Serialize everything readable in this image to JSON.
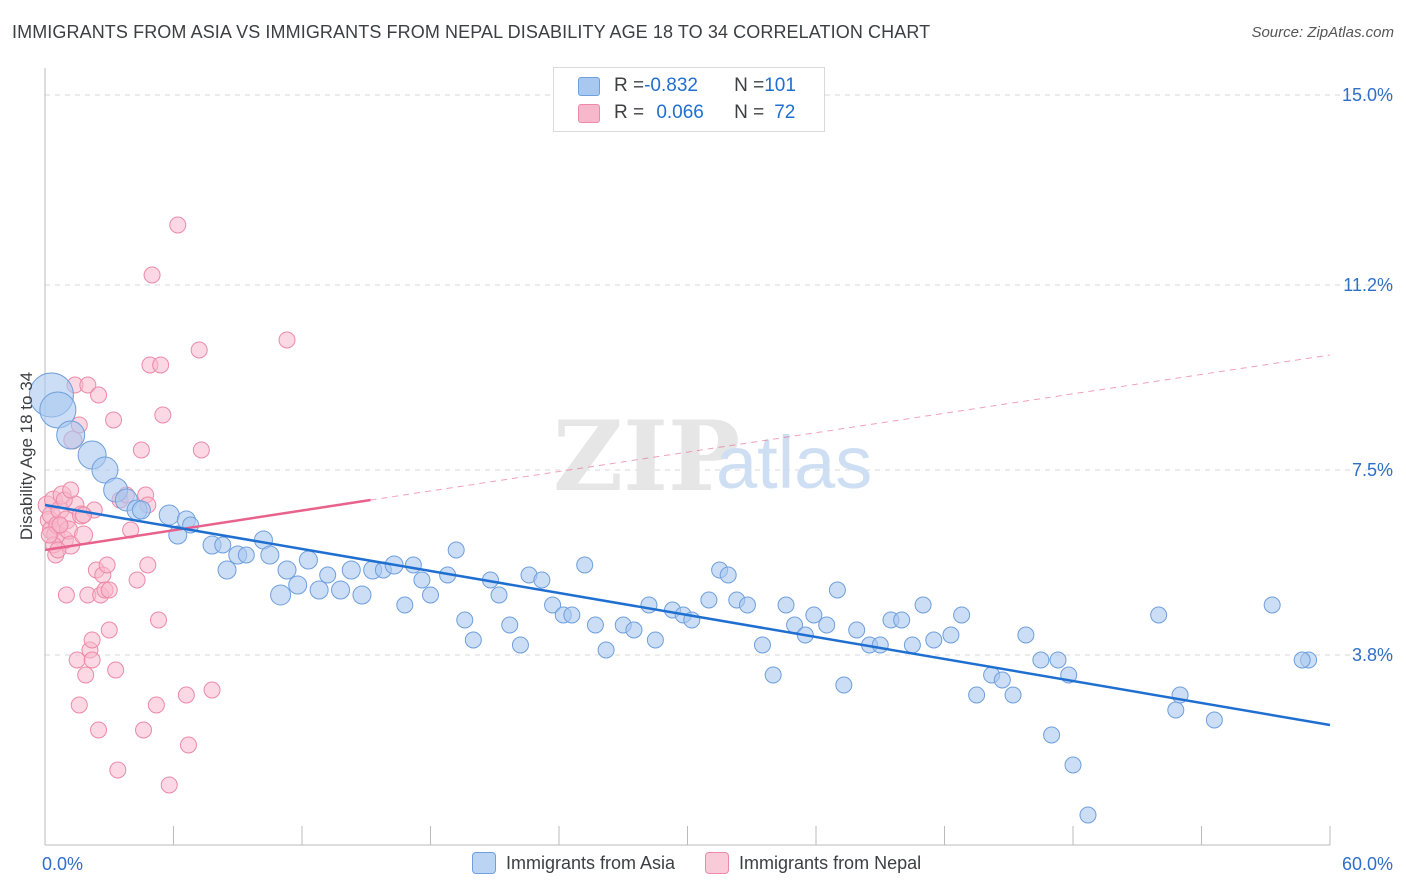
{
  "header": {
    "title": "IMMIGRANTS FROM ASIA VS IMMIGRANTS FROM NEPAL DISABILITY AGE 18 TO 34 CORRELATION CHART",
    "source": "Source: ZipAtlas.com"
  },
  "legend": {
    "rows": [
      {
        "r_label": "R = ",
        "r_value": "-0.832",
        "n_label": "N = ",
        "n_value": "101"
      },
      {
        "r_label": "R = ",
        "r_value": "0.066",
        "n_label": "N = ",
        "n_value": "72"
      }
    ]
  },
  "watermark": {
    "zip": "ZIP",
    "atlas": "atlas"
  },
  "colors": {
    "asia_fill": "#a9c8f0",
    "asia_stroke": "#6f9fdc",
    "asia_line": "#1f6fd1",
    "nepal_fill": "#f7b8cc",
    "nepal_stroke": "#ec8aa8",
    "nepal_line": "#e8628c",
    "grid": "#d8d8d8",
    "tick_label": "#2f6fc8"
  },
  "chart_data": {
    "type": "scatter",
    "title": "IMMIGRANTS FROM ASIA VS IMMIGRANTS FROM NEPAL DISABILITY AGE 18 TO 34 CORRELATION CHART",
    "xlabel": "",
    "ylabel": "Disability Age 18 to 34",
    "xlim": [
      0,
      60
    ],
    "ylim": [
      0,
      15.5
    ],
    "x_tick_labels": [
      "0.0%",
      "60.0%"
    ],
    "y_ticks": [
      3.8,
      7.5,
      11.2,
      15.0
    ],
    "y_tick_labels": [
      "3.8%",
      "7.5%",
      "11.2%",
      "15.0%"
    ],
    "grid": "horizontal dashed",
    "legend_position": "top-center",
    "series": [
      {
        "name": "Immigrants from Asia",
        "r": -0.832,
        "n": 101,
        "trend": {
          "x": [
            0,
            60
          ],
          "y": [
            6.8,
            2.4
          ],
          "style": "solid"
        },
        "points": [
          [
            0.3,
            9.0,
            22
          ],
          [
            0.6,
            8.7,
            18
          ],
          [
            1.2,
            8.2,
            14
          ],
          [
            2.2,
            7.8,
            14
          ],
          [
            2.8,
            7.5,
            13
          ],
          [
            3.3,
            7.1,
            12
          ],
          [
            3.8,
            6.9,
            11
          ],
          [
            4.3,
            6.7,
            10
          ],
          [
            5.8,
            6.6,
            10
          ],
          [
            6.2,
            6.2,
            9
          ],
          [
            6.6,
            6.5,
            9
          ],
          [
            6.8,
            6.4,
            8
          ],
          [
            7.8,
            6.0,
            9
          ],
          [
            8.3,
            6.0,
            8
          ],
          [
            8.5,
            5.5,
            9
          ],
          [
            9.0,
            5.8,
            9
          ],
          [
            9.4,
            5.8,
            8
          ],
          [
            10.2,
            6.1,
            9
          ],
          [
            10.5,
            5.8,
            9
          ],
          [
            11.0,
            5.0,
            10
          ],
          [
            11.3,
            5.5,
            9
          ],
          [
            11.8,
            5.2,
            9
          ],
          [
            12.3,
            5.7,
            9
          ],
          [
            12.8,
            5.1,
            9
          ],
          [
            13.2,
            5.4,
            8
          ],
          [
            13.8,
            5.1,
            9
          ],
          [
            14.3,
            5.5,
            9
          ],
          [
            14.8,
            5.0,
            9
          ],
          [
            15.3,
            5.5,
            9
          ],
          [
            15.8,
            5.5,
            8
          ],
          [
            16.3,
            5.6,
            9
          ],
          [
            16.8,
            4.8,
            8
          ],
          [
            17.2,
            5.6,
            8
          ],
          [
            17.6,
            5.3,
            8
          ],
          [
            18.0,
            5.0,
            8
          ],
          [
            18.8,
            5.4,
            8
          ],
          [
            19.2,
            5.9,
            8
          ],
          [
            19.6,
            4.5,
            8
          ],
          [
            20.0,
            4.1,
            8
          ],
          [
            20.8,
            5.3,
            8
          ],
          [
            21.2,
            5.0,
            8
          ],
          [
            21.7,
            4.4,
            8
          ],
          [
            22.2,
            4.0,
            8
          ],
          [
            22.6,
            5.4,
            8
          ],
          [
            23.2,
            5.3,
            8
          ],
          [
            23.7,
            4.8,
            8
          ],
          [
            24.2,
            4.6,
            8
          ],
          [
            24.6,
            4.6,
            8
          ],
          [
            25.2,
            5.6,
            8
          ],
          [
            25.7,
            4.4,
            8
          ],
          [
            26.2,
            3.9,
            8
          ],
          [
            27.0,
            4.4,
            8
          ],
          [
            27.5,
            4.3,
            8
          ],
          [
            28.2,
            4.8,
            8
          ],
          [
            28.5,
            4.1,
            8
          ],
          [
            29.3,
            4.7,
            8
          ],
          [
            29.8,
            4.6,
            8
          ],
          [
            30.2,
            4.5,
            8
          ],
          [
            31.0,
            4.9,
            8
          ],
          [
            31.5,
            5.5,
            8
          ],
          [
            31.9,
            5.4,
            8
          ],
          [
            32.3,
            4.9,
            8
          ],
          [
            32.8,
            4.8,
            8
          ],
          [
            33.5,
            4.0,
            8
          ],
          [
            34.0,
            3.4,
            8
          ],
          [
            34.6,
            4.8,
            8
          ],
          [
            35.0,
            4.4,
            8
          ],
          [
            35.5,
            4.2,
            8
          ],
          [
            35.9,
            4.6,
            8
          ],
          [
            36.5,
            4.4,
            8
          ],
          [
            37.0,
            5.1,
            8
          ],
          [
            37.3,
            3.2,
            8
          ],
          [
            37.9,
            4.3,
            8
          ],
          [
            38.5,
            4.0,
            8
          ],
          [
            39.0,
            4.0,
            8
          ],
          [
            39.5,
            4.5,
            8
          ],
          [
            40.0,
            4.5,
            8
          ],
          [
            40.5,
            4.0,
            8
          ],
          [
            41.0,
            4.8,
            8
          ],
          [
            41.5,
            4.1,
            8
          ],
          [
            42.3,
            4.2,
            8
          ],
          [
            42.8,
            4.6,
            8
          ],
          [
            43.5,
            3.0,
            8
          ],
          [
            44.2,
            3.4,
            8
          ],
          [
            44.7,
            3.3,
            8
          ],
          [
            45.2,
            3.0,
            8
          ],
          [
            45.8,
            4.2,
            8
          ],
          [
            46.5,
            3.7,
            8
          ],
          [
            47.0,
            2.2,
            8
          ],
          [
            47.3,
            3.7,
            8
          ],
          [
            47.8,
            3.4,
            8
          ],
          [
            48.7,
            0.6,
            8
          ],
          [
            48.0,
            1.6,
            8
          ],
          [
            52.0,
            4.6,
            8
          ],
          [
            52.8,
            2.7,
            8
          ],
          [
            53.0,
            3.0,
            8
          ],
          [
            54.6,
            2.5,
            8
          ],
          [
            57.3,
            4.8,
            8
          ],
          [
            59.0,
            3.7,
            8
          ],
          [
            58.7,
            3.7,
            8
          ],
          [
            4.5,
            6.7,
            9
          ]
        ]
      },
      {
        "name": "Immigrants from Nepal",
        "r": 0.066,
        "n": 72,
        "trend": {
          "x": [
            0,
            15.2
          ],
          "y": [
            5.9,
            6.9
          ],
          "style": "solid",
          "extended": {
            "x": [
              15.2,
              60
            ],
            "y": [
              6.9,
              9.8
            ],
            "style": "dashed"
          }
        },
        "points": [
          [
            0.1,
            6.8,
            9
          ],
          [
            0.2,
            6.5,
            9
          ],
          [
            0.3,
            6.3,
            9
          ],
          [
            0.3,
            6.6,
            9
          ],
          [
            0.4,
            6.9,
            9
          ],
          [
            0.5,
            6.2,
            9
          ],
          [
            0.5,
            5.8,
            8
          ],
          [
            0.6,
            6.4,
            9
          ],
          [
            0.7,
            6.7,
            9
          ],
          [
            0.8,
            7.0,
            9
          ],
          [
            0.9,
            6.1,
            9
          ],
          [
            1.0,
            6.5,
            9
          ],
          [
            1.0,
            5.0,
            8
          ],
          [
            1.1,
            6.3,
            9
          ],
          [
            1.2,
            6.0,
            9
          ],
          [
            1.3,
            8.1,
            9
          ],
          [
            1.4,
            6.8,
            9
          ],
          [
            1.4,
            9.2,
            8
          ],
          [
            1.5,
            3.7,
            8
          ],
          [
            1.6,
            8.4,
            8
          ],
          [
            1.6,
            2.8,
            8
          ],
          [
            1.7,
            6.6,
            9
          ],
          [
            1.8,
            6.2,
            9
          ],
          [
            1.9,
            3.4,
            8
          ],
          [
            2.0,
            9.2,
            8
          ],
          [
            2.0,
            5.0,
            8
          ],
          [
            2.1,
            3.9,
            8
          ],
          [
            2.2,
            3.7,
            8
          ],
          [
            2.2,
            4.1,
            8
          ],
          [
            2.3,
            6.7,
            8
          ],
          [
            2.4,
            5.5,
            8
          ],
          [
            2.5,
            2.3,
            8
          ],
          [
            2.5,
            9.0,
            8
          ],
          [
            2.6,
            5.0,
            8
          ],
          [
            2.7,
            5.4,
            8
          ],
          [
            2.8,
            5.1,
            8
          ],
          [
            2.9,
            5.6,
            8
          ],
          [
            3.0,
            5.1,
            8
          ],
          [
            3.0,
            4.3,
            8
          ],
          [
            3.2,
            8.5,
            8
          ],
          [
            3.3,
            3.5,
            8
          ],
          [
            3.4,
            1.5,
            8
          ],
          [
            3.5,
            6.9,
            8
          ],
          [
            3.8,
            7.0,
            8
          ],
          [
            4.0,
            6.3,
            8
          ],
          [
            4.3,
            5.3,
            8
          ],
          [
            4.5,
            7.9,
            8
          ],
          [
            4.6,
            2.3,
            8
          ],
          [
            4.7,
            7.0,
            8
          ],
          [
            4.8,
            6.8,
            8
          ],
          [
            4.8,
            5.6,
            8
          ],
          [
            4.9,
            9.6,
            8
          ],
          [
            5.0,
            11.4,
            8
          ],
          [
            5.2,
            2.8,
            8
          ],
          [
            5.3,
            4.5,
            8
          ],
          [
            5.4,
            9.6,
            8
          ],
          [
            5.5,
            8.6,
            8
          ],
          [
            5.8,
            1.2,
            8
          ],
          [
            6.2,
            12.4,
            8
          ],
          [
            6.6,
            3.0,
            8
          ],
          [
            6.7,
            2.0,
            8
          ],
          [
            7.2,
            9.9,
            8
          ],
          [
            7.3,
            7.9,
            8
          ],
          [
            7.8,
            3.1,
            8
          ],
          [
            11.3,
            10.1,
            8
          ],
          [
            0.4,
            6.0,
            8
          ],
          [
            0.6,
            5.9,
            8
          ],
          [
            1.8,
            6.6,
            8
          ],
          [
            0.9,
            6.9,
            8
          ],
          [
            1.2,
            7.1,
            8
          ],
          [
            0.2,
            6.2,
            8
          ],
          [
            0.7,
            6.4,
            8
          ]
        ]
      }
    ]
  }
}
